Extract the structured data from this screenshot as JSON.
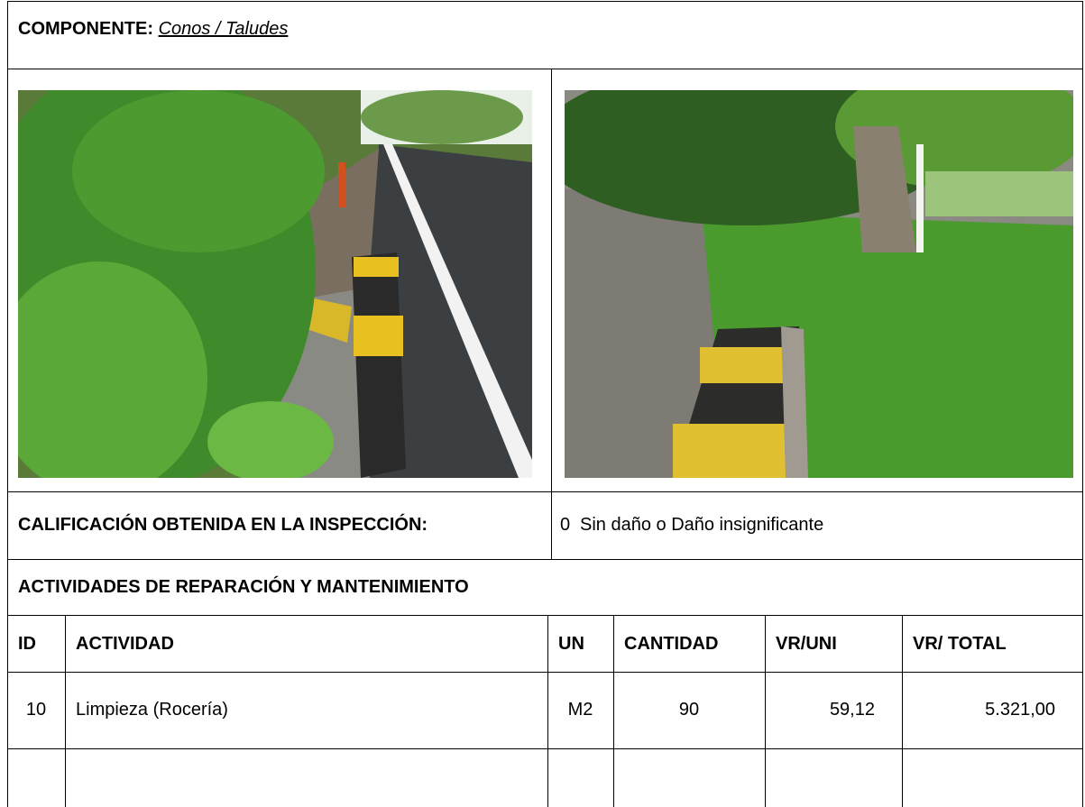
{
  "header": {
    "label": "COMPONENTE:",
    "value": "Conos / Taludes"
  },
  "rating": {
    "label": "CALIFICACIÓN OBTENIDA EN LA INSPECCIÓN:",
    "score": "0",
    "description": "Sin daño o Daño insignificante"
  },
  "activities": {
    "title": "ACTIVIDADES DE REPARACIÓN Y MANTENIMIENTO",
    "columns": [
      "ID",
      "ACTIVIDAD",
      "UN",
      "CANTIDAD",
      "VR/UNI",
      "VR/ TOTAL"
    ],
    "rows": [
      [
        "10",
        "Limpieza (Rocería)",
        "M2",
        "90",
        "59,12",
        "5.321,00"
      ]
    ]
  }
}
